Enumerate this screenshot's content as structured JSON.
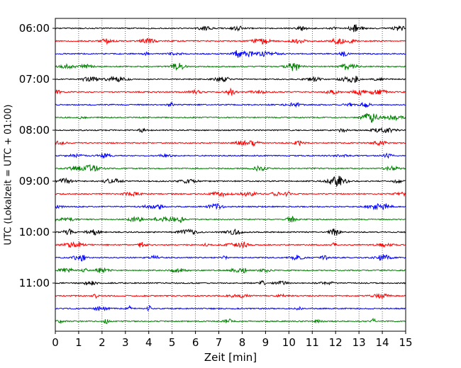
{
  "chart_data": {
    "type": "line",
    "title": "",
    "xlabel": "Zeit  [min]",
    "ylabel": "UTC (Lokalzeit = UTC + 01:00)",
    "xlim": [
      0,
      15
    ],
    "x_ticks": [
      0,
      1,
      2,
      3,
      4,
      5,
      6,
      7,
      8,
      9,
      10,
      11,
      12,
      13,
      14,
      15
    ],
    "x_tick_labels": [
      "0",
      "1",
      "2",
      "3",
      "4",
      "5",
      "6",
      "7",
      "8",
      "9",
      "10",
      "11",
      "12",
      "13",
      "14",
      "15"
    ],
    "y_tick_labels": [
      "06:00",
      "07:00",
      "08:00",
      "09:00",
      "10:00",
      "11:00"
    ],
    "grid": "vertical dotted",
    "trace_start_times": [
      "06:00",
      "06:15",
      "06:30",
      "06:45",
      "07:00",
      "07:15",
      "07:30",
      "07:45",
      "08:00",
      "08:15",
      "08:30",
      "08:45",
      "09:00",
      "09:15",
      "09:30",
      "09:45",
      "10:00",
      "10:15",
      "10:30",
      "10:45",
      "11:00",
      "11:15",
      "11:30",
      "11:45"
    ],
    "trace_colors": [
      "#000000",
      "#ff0000",
      "#0000ff",
      "#008000"
    ],
    "legend": "none"
  }
}
